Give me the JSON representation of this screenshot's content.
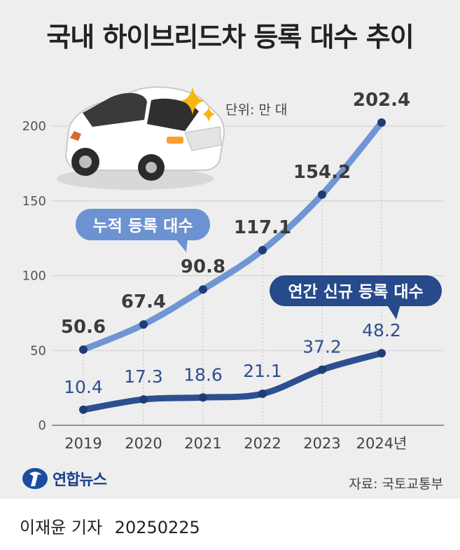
{
  "title": "국내 하이브리드차 등록 대수 추이",
  "unit_note": "단위: 만 대",
  "callouts": {
    "cumulative": "누적 등록 대수",
    "annual": "연간 신규 등록 대수"
  },
  "source": "자료: 국토교통부",
  "brand": "연합뉴스",
  "reporter": "이재윤 기자",
  "date": "20250225",
  "colors": {
    "background": "#eeeeee",
    "cumulative": "#6f95d4",
    "annual": "#2d4f90",
    "dot": "#1f3d74",
    "callout_light": "#6d92d2",
    "callout_dark": "#274a8a"
  },
  "icons": [
    "car-icon",
    "sparkle-icon",
    "yonhap-logo-icon"
  ],
  "chart_data": {
    "type": "line",
    "categories": [
      "2019",
      "2020",
      "2021",
      "2022",
      "2023",
      "2024년"
    ],
    "series": [
      {
        "name": "누적 등록 대수",
        "values": [
          50.6,
          67.4,
          90.8,
          117.1,
          154.2,
          202.4
        ]
      },
      {
        "name": "연간 신규 등록 대수",
        "values": [
          10.4,
          17.3,
          18.6,
          21.1,
          37.2,
          48.2
        ]
      }
    ],
    "yticks": [
      "0",
      "50",
      "100",
      "150",
      "200"
    ],
    "ylim": [
      0,
      200
    ],
    "grid": true
  }
}
